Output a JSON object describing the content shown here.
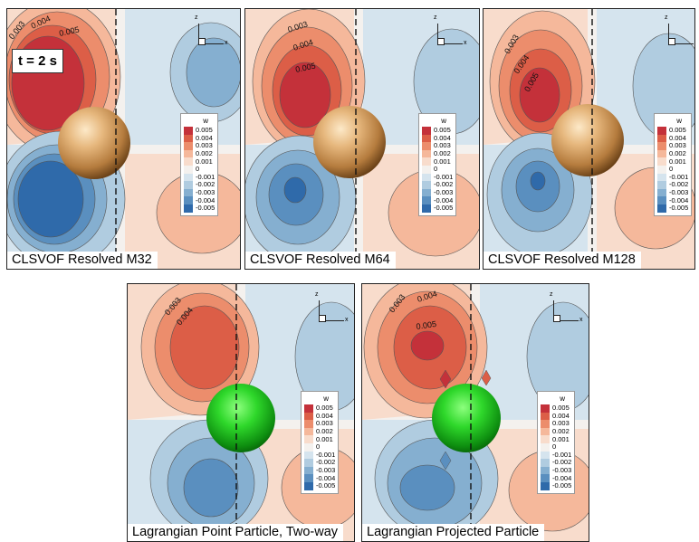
{
  "time_label": "t = 2 s",
  "legend": {
    "title": "w",
    "levels": [
      "0.005",
      "0.004",
      "0.003",
      "0.002",
      "0.001",
      "0",
      "-0.001",
      "-0.002",
      "-0.003",
      "-0.004",
      "-0.005"
    ],
    "colors": [
      "#c4313a",
      "#dc5e47",
      "#ec8d6c",
      "#f5b89b",
      "#f8dccc",
      "#f4f1ee",
      "#d5e4ee",
      "#b0cce0",
      "#85afd0",
      "#5a8fbf",
      "#2f6aaa"
    ]
  },
  "axis_labels": {
    "z": "z",
    "x": "x"
  },
  "panels": [
    {
      "caption": "CLSVOF Resolved M32",
      "sphere_color": "bronze",
      "contour_labels": [
        "0.003",
        "0.004",
        "0.005"
      ]
    },
    {
      "caption": "CLSVOF Resolved M64",
      "sphere_color": "bronze",
      "contour_labels": [
        "0.003",
        "0.004",
        "0.005"
      ]
    },
    {
      "caption": "CLSVOF Resolved M128",
      "sphere_color": "bronze",
      "contour_labels": [
        "0.003",
        "0.004",
        "0.005"
      ]
    },
    {
      "caption": "Lagrangian Point Particle, Two-way",
      "sphere_color": "green",
      "contour_labels": [
        "0.003",
        "0.004"
      ]
    },
    {
      "caption": "Lagrangian Projected Particle",
      "sphere_color": "green",
      "contour_labels": [
        "0.003",
        "0.004",
        "0.005"
      ]
    }
  ]
}
